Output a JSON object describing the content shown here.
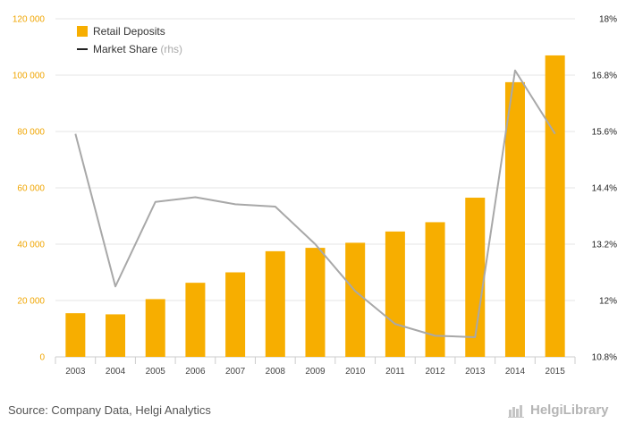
{
  "chart_data": {
    "type": "bar",
    "categories": [
      "2003",
      "2004",
      "2005",
      "2006",
      "2007",
      "2008",
      "2009",
      "2010",
      "2011",
      "2012",
      "2013",
      "2014",
      "2015"
    ],
    "series": [
      {
        "name": "Retail Deposits",
        "type": "bar",
        "axis": "left",
        "values": [
          15500,
          15100,
          20500,
          26300,
          30000,
          37500,
          38700,
          40500,
          44500,
          47800,
          56500,
          97500,
          107000
        ]
      },
      {
        "name": "Market Share",
        "type": "line",
        "axis": "right",
        "values": [
          15.55,
          12.3,
          14.1,
          14.2,
          14.05,
          14.0,
          13.2,
          12.2,
          11.5,
          11.25,
          11.22,
          16.9,
          15.55
        ]
      }
    ],
    "legend": [
      {
        "label": "Retail Deposits",
        "suffix": ""
      },
      {
        "label": "Market Share",
        "suffix": "(rhs)"
      }
    ],
    "left_axis": {
      "ylim": [
        0,
        120000
      ],
      "ticks": [
        0,
        20000,
        40000,
        60000,
        80000,
        100000,
        120000
      ],
      "tick_labels": [
        "0",
        "20 000",
        "40 000",
        "60 000",
        "80 000",
        "100 000",
        "120 000"
      ]
    },
    "right_axis": {
      "ylim": [
        10.8,
        18.0
      ],
      "ticks": [
        10.8,
        12.0,
        13.2,
        14.4,
        15.6,
        16.8,
        18.0
      ],
      "tick_labels": [
        "10.8%",
        "12%",
        "13.2%",
        "14.4%",
        "15.6%",
        "16.8%",
        "18%"
      ]
    },
    "grid": true,
    "legend_position": "top-left",
    "colors": {
      "bar": "#f7ae00",
      "line": "#a8a8a8",
      "left_ticks": "#f0a500",
      "grid": "#e6e6e6"
    }
  },
  "footer": {
    "source": "Source: Company Data, Helgi Analytics",
    "brand": "HelgiLibrary"
  }
}
